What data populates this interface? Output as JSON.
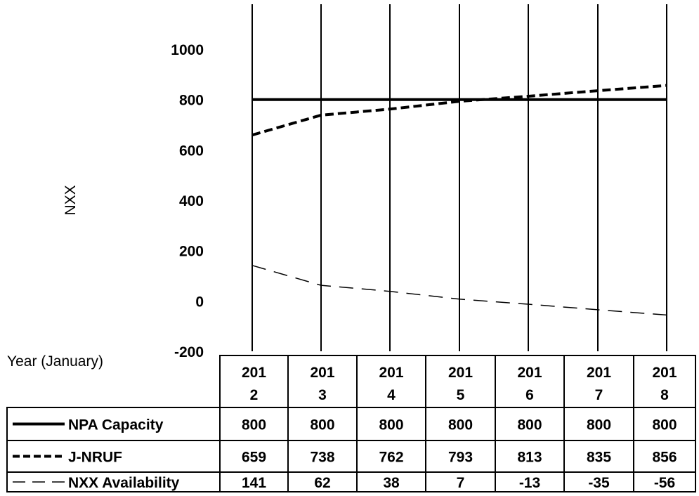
{
  "chart_data": {
    "type": "line",
    "ylabel": "NXX",
    "xlabel": "Year (January)",
    "ylim": [
      -200,
      1000
    ],
    "yticks": [
      1000,
      800,
      600,
      400,
      200,
      0,
      -200
    ],
    "categories": [
      [
        "201",
        "2"
      ],
      [
        "201",
        "3"
      ],
      [
        "201",
        "4"
      ],
      [
        "201",
        "5"
      ],
      [
        "201",
        "6"
      ],
      [
        "201",
        "7"
      ],
      [
        "201",
        "8"
      ]
    ],
    "x": [
      2012,
      2013,
      2014,
      2015,
      2016,
      2017,
      2018
    ],
    "series": [
      {
        "name": "NPA Capacity",
        "style": "solid",
        "values": [
          800,
          800,
          800,
          800,
          800,
          800,
          800
        ]
      },
      {
        "name": "J-NRUF",
        "style": "dashed",
        "values": [
          659,
          738,
          762,
          793,
          813,
          835,
          856
        ]
      },
      {
        "name": "NXX Availability",
        "style": "long-dashed",
        "values": [
          141,
          62,
          38,
          7,
          -13,
          -35,
          -56
        ]
      }
    ],
    "table_values": [
      [
        "800",
        "800",
        "800",
        "800",
        "800",
        "800",
        "800"
      ],
      [
        "659",
        "738",
        "762",
        "793",
        "813",
        "835",
        "856"
      ],
      [
        "141",
        "62",
        "38",
        "7",
        "-13",
        "-35",
        "-56"
      ]
    ],
    "grid": true,
    "legend": "data table rows at bottom",
    "color": "#000000"
  }
}
